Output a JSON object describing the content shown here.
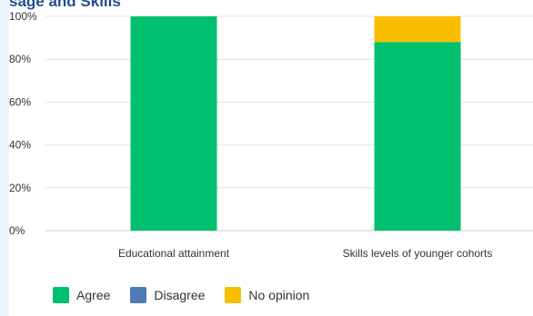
{
  "header": {
    "title": "sage and Skills"
  },
  "chart_data": {
    "type": "bar",
    "stacked": true,
    "categories": [
      "Educational attainment",
      "Skills levels of younger cohorts"
    ],
    "series": [
      {
        "name": "Agree",
        "color": "#00bf6f",
        "values": [
          100,
          88
        ]
      },
      {
        "name": "Disagree",
        "color": "#507cb6",
        "values": [
          0,
          0
        ]
      },
      {
        "name": "No opinion",
        "color": "#f9be00",
        "values": [
          0,
          12
        ]
      }
    ],
    "ylim": [
      0,
      100
    ],
    "yticks": [
      "0%",
      "20%",
      "40%",
      "60%",
      "80%",
      "100%"
    ],
    "grid": true,
    "legend": "bottom-left"
  }
}
